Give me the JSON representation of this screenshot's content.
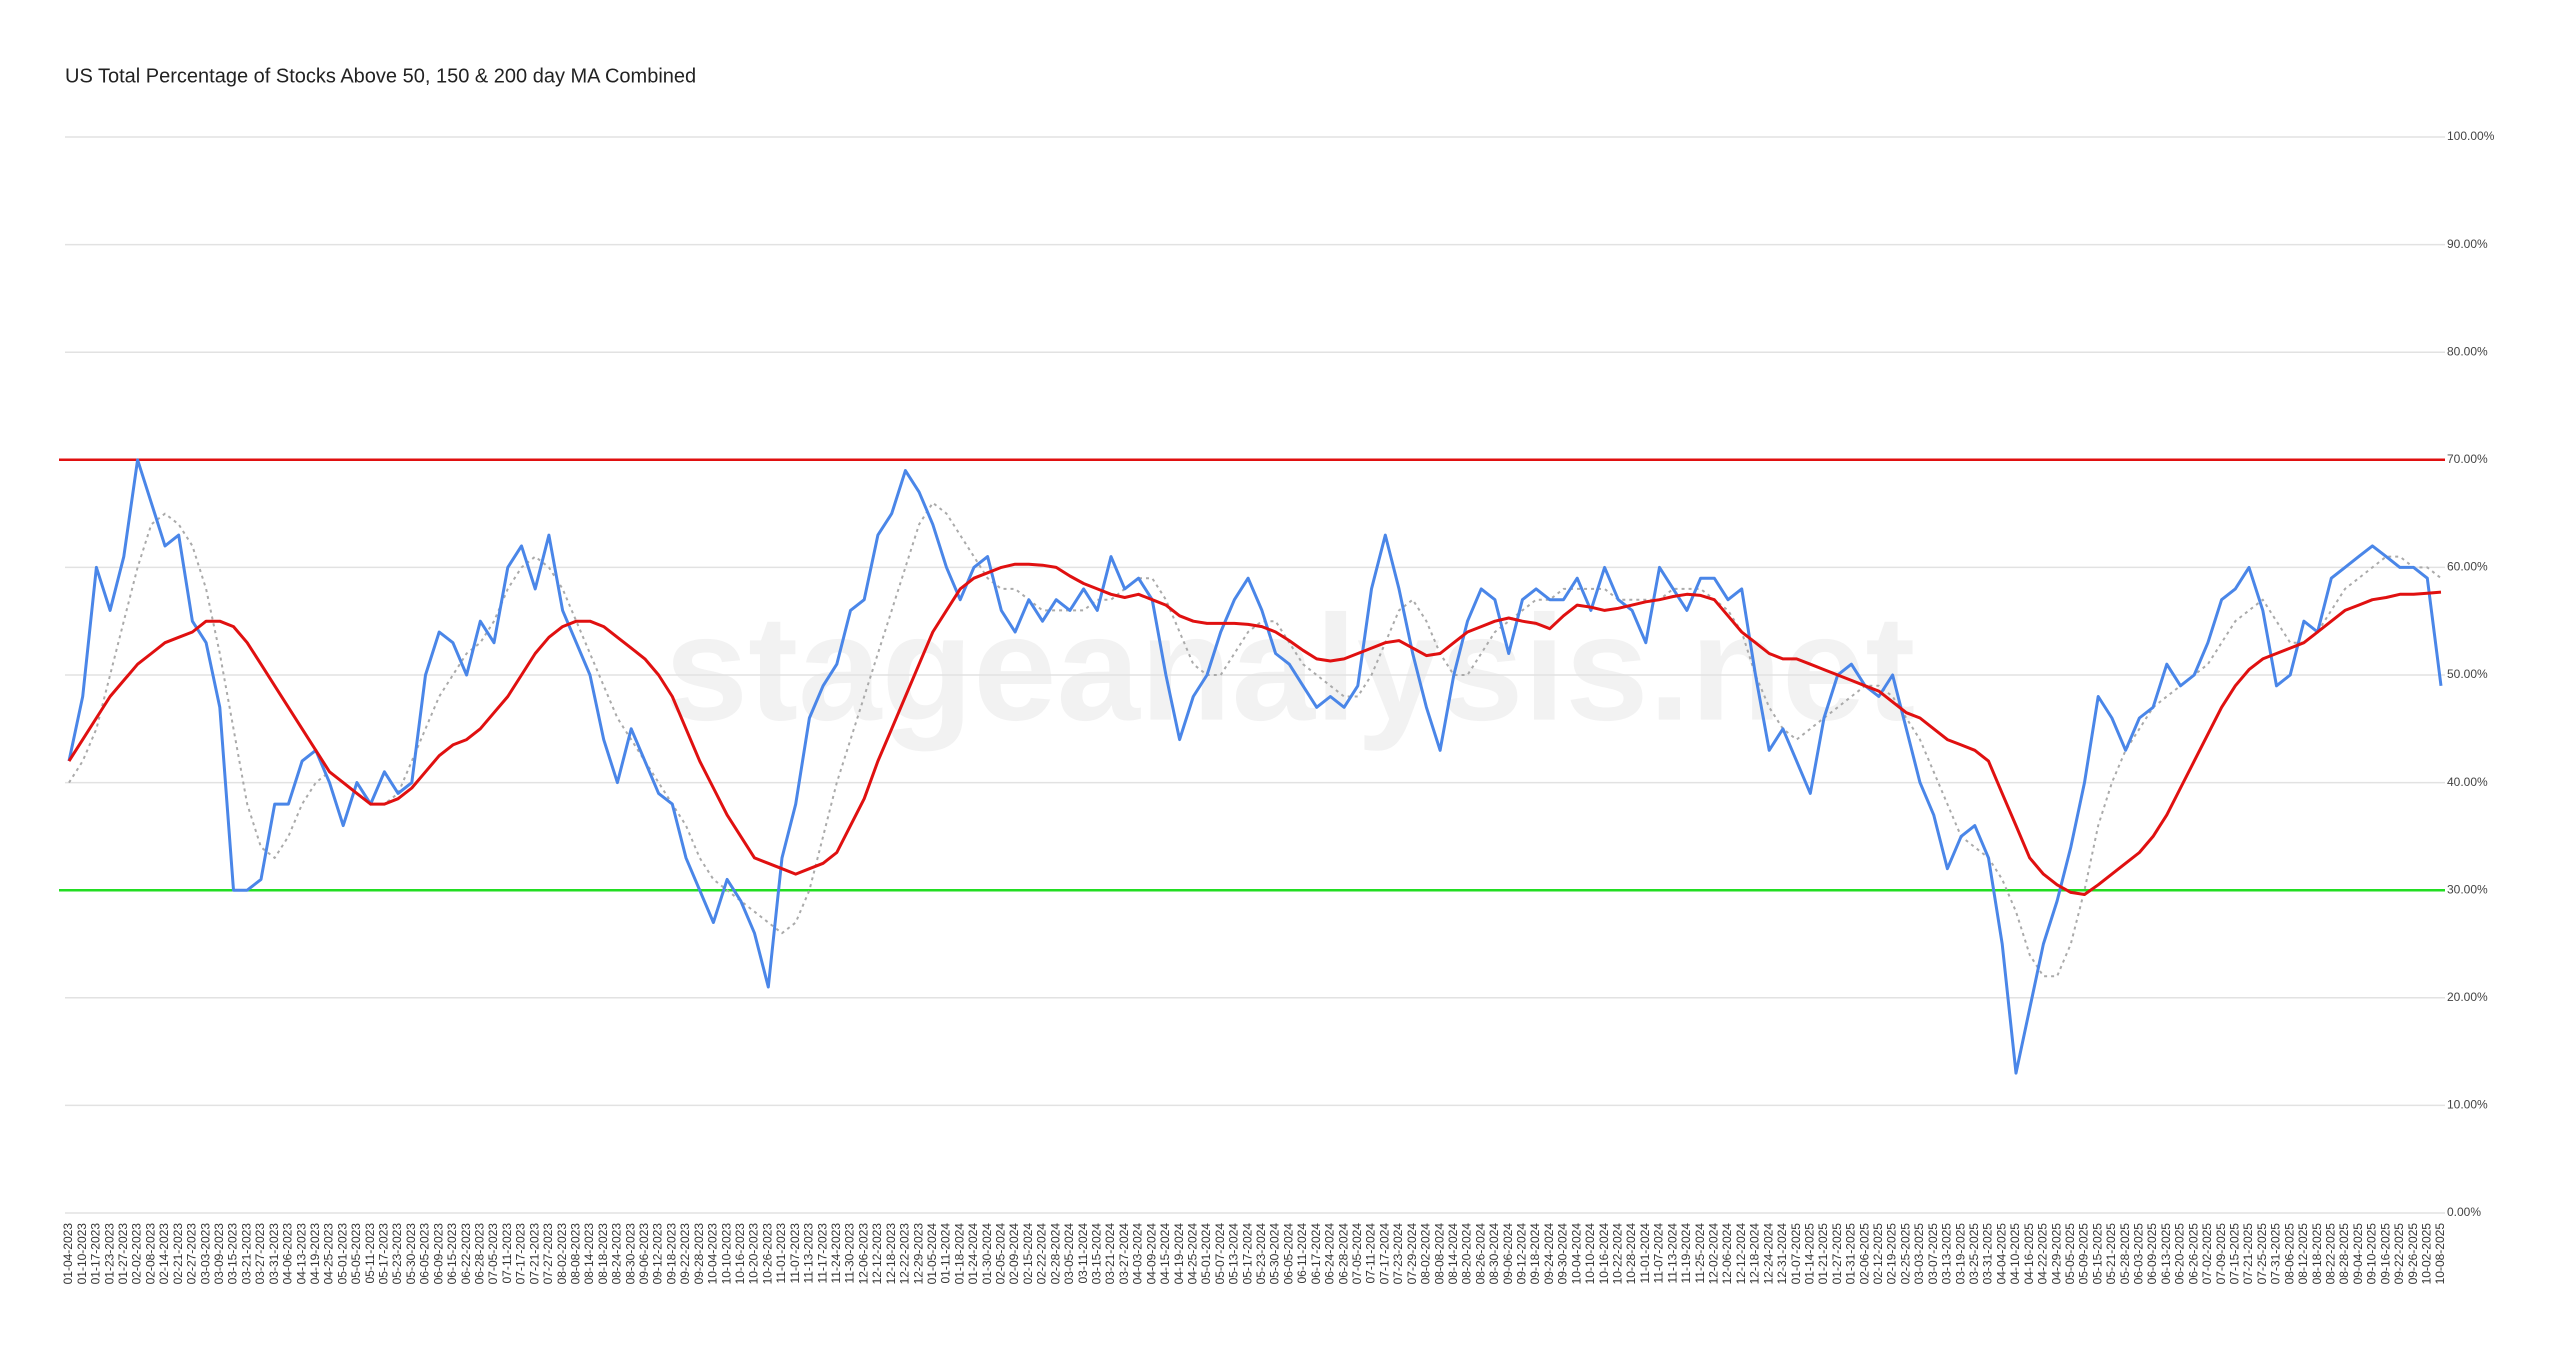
{
  "chart_data": {
    "type": "line",
    "title": "US Total Percentage of Stocks Above 50, 150 & 200 day MA Combined",
    "watermark": "stageanalysis.net",
    "categories": [
      "01-04-2023",
      "01-10-2023",
      "01-17-2023",
      "01-23-2023",
      "01-27-2023",
      "02-02-2023",
      "02-08-2023",
      "02-14-2023",
      "02-21-2023",
      "02-27-2023",
      "03-03-2023",
      "03-09-2023",
      "03-15-2023",
      "03-21-2023",
      "03-27-2023",
      "03-31-2023",
      "04-06-2023",
      "04-13-2023",
      "04-19-2023",
      "04-25-2023",
      "05-01-2023",
      "05-05-2023",
      "05-11-2023",
      "05-17-2023",
      "05-23-2023",
      "05-30-2023",
      "06-05-2023",
      "06-09-2023",
      "06-15-2023",
      "06-22-2023",
      "06-28-2023",
      "07-05-2023",
      "07-11-2023",
      "07-17-2023",
      "07-21-2023",
      "07-27-2023",
      "08-02-2023",
      "08-08-2023",
      "08-14-2023",
      "08-18-2023",
      "08-24-2023",
      "08-30-2023",
      "09-06-2023",
      "09-12-2023",
      "09-18-2023",
      "09-22-2023",
      "09-28-2023",
      "10-04-2023",
      "10-10-2023",
      "10-16-2023",
      "10-20-2023",
      "10-26-2023",
      "11-01-2023",
      "11-07-2023",
      "11-13-2023",
      "11-17-2023",
      "11-24-2023",
      "11-30-2023",
      "12-06-2023",
      "12-12-2023",
      "12-18-2023",
      "12-22-2023",
      "12-29-2023",
      "01-05-2024",
      "01-11-2024",
      "01-18-2024",
      "01-24-2024",
      "01-30-2024",
      "02-05-2024",
      "02-09-2024",
      "02-15-2024",
      "02-22-2024",
      "02-28-2024",
      "03-05-2024",
      "03-11-2024",
      "03-15-2024",
      "03-21-2024",
      "03-27-2024",
      "04-03-2024",
      "04-09-2024",
      "04-15-2024",
      "04-19-2024",
      "04-25-2024",
      "05-01-2024",
      "05-07-2024",
      "05-13-2024",
      "05-17-2024",
      "05-23-2024",
      "05-30-2024",
      "06-05-2024",
      "06-11-2024",
      "06-17-2024",
      "06-24-2024",
      "06-28-2024",
      "07-05-2024",
      "07-11-2024",
      "07-17-2024",
      "07-23-2024",
      "07-29-2024",
      "08-02-2024",
      "08-08-2024",
      "08-14-2024",
      "08-20-2024",
      "08-26-2024",
      "08-30-2024",
      "09-06-2024",
      "09-12-2024",
      "09-18-2024",
      "09-24-2024",
      "09-30-2024",
      "10-04-2024",
      "10-10-2024",
      "10-16-2024",
      "10-22-2024",
      "10-28-2024",
      "11-01-2024",
      "11-07-2024",
      "11-13-2024",
      "11-19-2024",
      "11-25-2024",
      "12-02-2024",
      "12-06-2024",
      "12-12-2024",
      "12-18-2024",
      "12-24-2024",
      "12-31-2024",
      "01-07-2025",
      "01-14-2025",
      "01-21-2025",
      "01-27-2025",
      "01-31-2025",
      "02-06-2025",
      "02-12-2025",
      "02-19-2025",
      "02-25-2025",
      "03-03-2025",
      "03-07-2025",
      "03-13-2025",
      "03-19-2025",
      "03-25-2025",
      "03-31-2025",
      "04-04-2025",
      "04-10-2025",
      "04-16-2025",
      "04-22-2025",
      "04-29-2025",
      "05-05-2025",
      "05-09-2025",
      "05-15-2025",
      "05-21-2025",
      "05-28-2025",
      "06-03-2025",
      "06-09-2025",
      "06-13-2025",
      "06-20-2025",
      "06-26-2025",
      "07-02-2025",
      "07-09-2025",
      "07-15-2025",
      "07-21-2025",
      "07-25-2025",
      "07-31-2025",
      "08-06-2025",
      "08-12-2025",
      "08-18-2025",
      "08-22-2025",
      "08-28-2025",
      "09-04-2025",
      "09-10-2025",
      "09-16-2025",
      "09-22-2025",
      "09-26-2025",
      "10-02-2025",
      "10-08-2025"
    ],
    "series": [
      {
        "color": "#aaaaaa",
        "dash": true,
        "width": 2,
        "values": [
          40,
          42,
          45,
          50,
          55,
          60,
          64,
          65,
          64,
          62,
          58,
          52,
          45,
          38,
          34,
          33,
          35,
          38,
          40,
          41,
          40,
          39,
          38,
          38,
          39,
          42,
          45,
          48,
          50,
          52,
          53,
          55,
          58,
          60,
          61,
          60,
          58,
          55,
          52,
          49,
          46,
          44,
          42,
          40,
          38,
          36,
          33,
          31,
          30,
          29,
          28,
          27,
          26,
          27,
          30,
          35,
          40,
          44,
          48,
          52,
          56,
          60,
          64,
          66,
          65,
          63,
          61,
          59,
          58,
          58,
          57,
          56,
          56,
          56,
          56,
          57,
          57,
          58,
          59,
          59,
          57,
          54,
          51,
          50,
          50,
          52,
          54,
          55,
          55,
          53,
          51,
          50,
          49,
          48,
          48,
          50,
          53,
          56,
          57,
          55,
          52,
          50,
          50,
          52,
          54,
          55,
          56,
          57,
          57,
          58,
          58,
          58,
          58,
          57,
          57,
          57,
          57,
          58,
          58,
          58,
          57,
          56,
          54,
          50,
          47,
          45,
          44,
          45,
          46,
          47,
          48,
          49,
          49,
          48,
          46,
          44,
          41,
          38,
          35,
          34,
          33,
          31,
          28,
          24,
          22,
          22,
          25,
          30,
          36,
          40,
          43,
          45,
          47,
          48,
          49,
          50,
          51,
          53,
          55,
          56,
          57,
          55,
          53,
          53,
          54,
          56,
          58,
          59,
          60,
          61,
          61,
          60,
          60,
          59
        ]
      },
      {
        "color": "#4a86e8",
        "dash": false,
        "width": 3,
        "values": [
          42,
          48,
          60,
          56,
          61,
          70,
          66,
          62,
          63,
          55,
          53,
          47,
          30,
          30,
          31,
          38,
          38,
          42,
          43,
          40,
          36,
          40,
          38,
          41,
          39,
          40,
          50,
          54,
          53,
          50,
          55,
          53,
          60,
          62,
          58,
          63,
          56,
          53,
          50,
          44,
          40,
          45,
          42,
          39,
          38,
          33,
          30,
          27,
          31,
          29,
          26,
          21,
          33,
          38,
          46,
          49,
          51,
          56,
          57,
          63,
          65,
          69,
          67,
          64,
          60,
          57,
          60,
          61,
          56,
          54,
          57,
          55,
          57,
          56,
          58,
          56,
          61,
          58,
          59,
          57,
          50,
          44,
          48,
          50,
          54,
          57,
          59,
          56,
          52,
          51,
          49,
          47,
          48,
          47,
          49,
          58,
          63,
          58,
          52,
          47,
          43,
          50,
          55,
          58,
          57,
          52,
          57,
          58,
          57,
          57,
          59,
          56,
          60,
          57,
          56,
          53,
          60,
          58,
          56,
          59,
          59,
          57,
          58,
          50,
          43,
          45,
          42,
          39,
          46,
          50,
          51,
          49,
          48,
          50,
          45,
          40,
          37,
          32,
          35,
          36,
          33,
          25,
          13,
          19,
          25,
          29,
          34,
          40,
          48,
          46,
          43,
          46,
          47,
          51,
          49,
          50,
          53,
          57,
          58,
          60,
          56,
          49,
          50,
          55,
          54,
          59,
          60,
          61,
          62,
          61,
          60,
          60,
          59,
          49
        ]
      },
      {
        "color": "#e01010",
        "dash": false,
        "width": 3,
        "values": [
          42,
          44,
          46,
          48,
          49.5,
          51,
          52,
          53,
          53.5,
          54,
          55,
          55,
          54.5,
          53,
          51,
          49,
          47,
          45,
          43,
          41,
          40,
          39,
          38,
          38,
          38.5,
          39.5,
          41,
          42.5,
          43.5,
          44,
          45,
          46.5,
          48,
          50,
          52,
          53.5,
          54.5,
          55,
          55,
          54.5,
          53.5,
          52.5,
          51.5,
          50,
          48,
          45,
          42,
          39.5,
          37,
          35,
          33,
          32.5,
          32,
          31.5,
          32,
          32.5,
          33.5,
          36,
          38.5,
          42,
          45,
          48,
          51,
          54,
          56,
          58,
          59,
          59.5,
          60,
          60.3,
          60.3,
          60.2,
          60,
          59.2,
          58.5,
          58,
          57.5,
          57.2,
          57.5,
          57,
          56.5,
          55.5,
          55,
          54.8,
          54.8,
          54.8,
          54.7,
          54.5,
          54,
          53.2,
          52.3,
          51.5,
          51.3,
          51.5,
          52,
          52.5,
          53,
          53.2,
          52.5,
          51.8,
          52,
          53,
          54,
          54.5,
          55,
          55.3,
          55,
          54.8,
          54.3,
          55.5,
          56.5,
          56.3,
          56,
          56.2,
          56.5,
          56.8,
          57,
          57.3,
          57.5,
          57.4,
          57,
          55.5,
          54,
          53,
          52,
          51.5,
          51.5,
          51,
          50.5,
          50,
          49.5,
          49,
          48.5,
          47.5,
          46.5,
          46,
          45,
          44,
          43.5,
          43,
          42,
          39,
          36,
          33,
          31.5,
          30.5,
          29.8,
          29.6,
          30.5,
          31.5,
          32.5,
          33.5,
          35,
          37,
          39.5,
          42,
          44.5,
          47,
          49,
          50.5,
          51.5,
          52,
          52.5,
          53,
          54,
          55,
          56,
          56.5,
          57,
          57.2,
          57.5,
          57.5,
          57.6,
          57.7
        ]
      }
    ],
    "reference_lines": [
      {
        "value": 70,
        "color": "#e01010"
      },
      {
        "value": 30,
        "color": "#22dd22"
      }
    ],
    "ylim": [
      0,
      100
    ],
    "yticks": [
      {
        "value": 0,
        "label": "0.00%"
      },
      {
        "value": 10,
        "label": "10.00%"
      },
      {
        "value": 20,
        "label": "20.00%"
      },
      {
        "value": 30,
        "label": "30.00%"
      },
      {
        "value": 40,
        "label": "40.00%"
      },
      {
        "value": 50,
        "label": "50.00%"
      },
      {
        "value": 60,
        "label": "60.00%"
      },
      {
        "value": 70,
        "label": "70.00%"
      },
      {
        "value": 80,
        "label": "80.00%"
      },
      {
        "value": 90,
        "label": "90.00%"
      },
      {
        "value": 100,
        "label": "100.00%"
      }
    ],
    "grid": true
  }
}
